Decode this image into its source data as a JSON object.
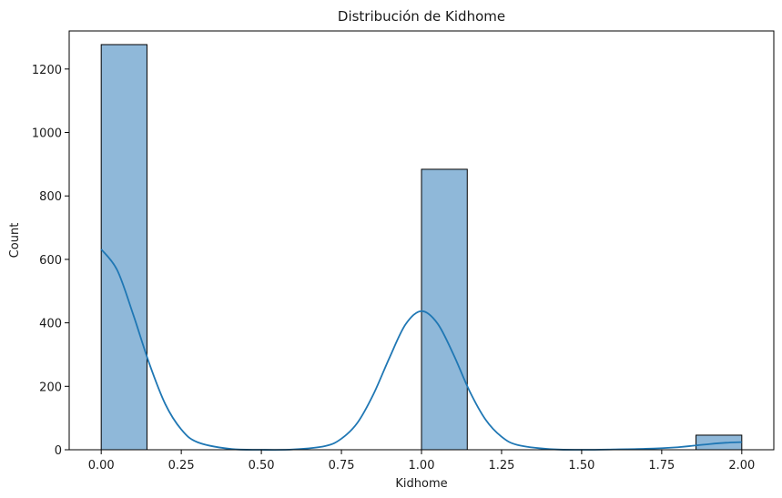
{
  "chart_data": {
    "type": "bar",
    "title": "Distribución de Kidhome",
    "xlabel": "Kidhome",
    "ylabel": "Count",
    "xlim": [
      -0.1,
      2.1
    ],
    "ylim": [
      0,
      1320
    ],
    "x_ticks": [
      0.0,
      0.25,
      0.5,
      0.75,
      1.0,
      1.25,
      1.5,
      1.75,
      2.0
    ],
    "x_tick_labels": [
      "0.00",
      "0.25",
      "0.50",
      "0.75",
      "1.00",
      "1.25",
      "1.50",
      "1.75",
      "2.00"
    ],
    "y_ticks": [
      0,
      200,
      400,
      600,
      800,
      1000,
      1200
    ],
    "y_tick_labels": [
      "0",
      "200",
      "400",
      "600",
      "800",
      "1000",
      "1200"
    ],
    "bins": [
      {
        "x0": 0.0,
        "x1": 0.1429,
        "count": 1277
      },
      {
        "x0": 1.0,
        "x1": 1.1429,
        "count": 884
      },
      {
        "x0": 1.8571,
        "x1": 2.0,
        "count": 46
      }
    ],
    "kde": {
      "x": [
        0.0,
        0.05,
        0.1,
        0.15,
        0.2,
        0.25,
        0.3,
        0.4,
        0.5,
        0.6,
        0.7,
        0.75,
        0.8,
        0.85,
        0.9,
        0.95,
        1.0,
        1.05,
        1.1,
        1.15,
        1.2,
        1.25,
        1.3,
        1.4,
        1.5,
        1.6,
        1.7,
        1.8,
        1.85,
        1.9,
        1.95,
        2.0
      ],
      "y": [
        632,
        566,
        426,
        272,
        144,
        64,
        24,
        3,
        0,
        1,
        12,
        35,
        85,
        175,
        290,
        395,
        437,
        398,
        300,
        185,
        95,
        41,
        15,
        2,
        0,
        1,
        3,
        8,
        13,
        18,
        22,
        24
      ]
    },
    "grid": false,
    "colors": {
      "bar_fill": "#8fb8d9",
      "bar_edge": "#000000",
      "kde_line": "#1f77b4"
    }
  }
}
